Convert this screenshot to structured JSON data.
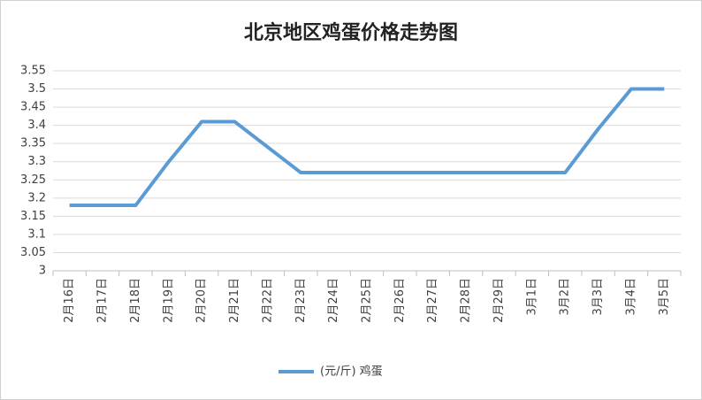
{
  "chart_data": {
    "type": "line",
    "title": "北京地区鸡蛋价格走势图",
    "categories": [
      "2月16日",
      "2月17日",
      "2月18日",
      "2月19日",
      "2月20日",
      "2月21日",
      "2月22日",
      "2月23日",
      "2月24日",
      "2月25日",
      "2月26日",
      "2月27日",
      "2月28日",
      "2月29日",
      "3月1日",
      "3月2日",
      "3月3日",
      "3月4日",
      "3月5日"
    ],
    "series": [
      {
        "name": "(元/斤) 鸡蛋",
        "color": "#5b9bd5",
        "values": [
          3.18,
          3.18,
          3.18,
          3.3,
          3.41,
          3.41,
          3.34,
          3.27,
          3.27,
          3.27,
          3.27,
          3.27,
          3.27,
          3.27,
          3.27,
          3.27,
          3.39,
          3.5,
          3.5
        ]
      }
    ],
    "ylim": [
      3,
      3.55
    ],
    "yticks": [
      3,
      3.05,
      3.1,
      3.15,
      3.2,
      3.25,
      3.3,
      3.35,
      3.4,
      3.45,
      3.5,
      3.55
    ],
    "grid": true,
    "legend": "bottom"
  }
}
